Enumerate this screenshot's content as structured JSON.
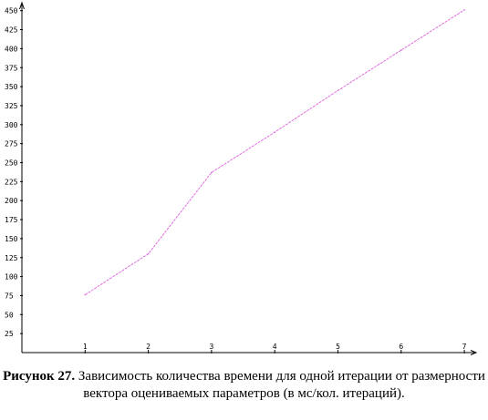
{
  "chart_data": {
    "type": "line",
    "x": [
      1,
      2,
      3,
      4,
      5,
      6,
      7
    ],
    "series": [
      {
        "values": [
          76,
          130,
          237,
          290,
          345,
          398,
          451
        ]
      }
    ],
    "x_ticks": [
      "1",
      "2",
      "3",
      "4",
      "5",
      "6",
      "7"
    ],
    "y_ticks": [
      "25",
      "50",
      "75",
      "100",
      "125",
      "150",
      "175",
      "200",
      "225",
      "250",
      "275",
      "300",
      "325",
      "350",
      "375",
      "400",
      "425",
      "450"
    ],
    "xlim": [
      0,
      7.2
    ],
    "ylim": [
      0,
      450
    ],
    "grid": false,
    "line_color": "#e070e0",
    "axis_color": "#000000"
  },
  "caption": {
    "label": "Рисунок 27.",
    "text": " Зависимость количества времени для одной итерации от размерности вектора оцениваемых параметров (в мс/кол. итераций)."
  }
}
